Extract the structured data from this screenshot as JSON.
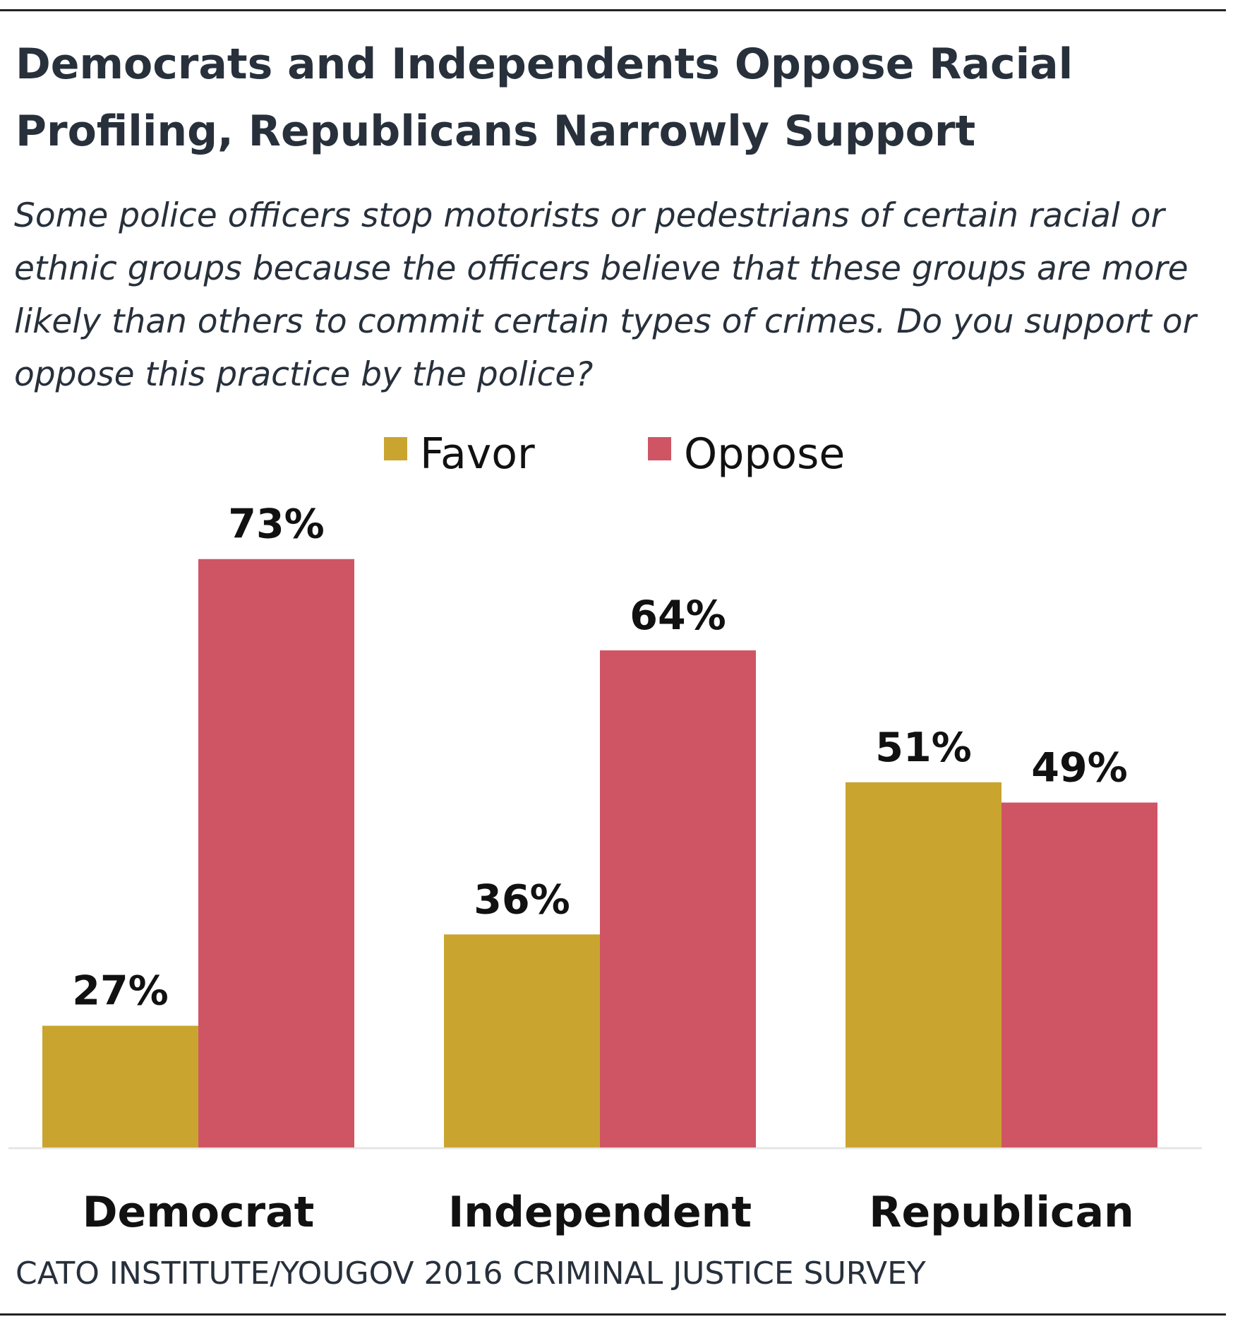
{
  "chart_data": {
    "type": "bar",
    "title": "Democrats and Independents Oppose Racial Profiling, Republicans Narrowly Support",
    "subtitle": "Some police officers stop motorists or pedestrians of certain racial or ethnic groups because the officers believe that these groups are more likely than others to commit certain types of crimes. Do you support or oppose this practice by the police?",
    "source": "CATO INSTITUTE/YOUGOV 2016 CRIMINAL JUSTICE SURVEY",
    "categories": [
      "Democrat",
      "Independent",
      "Republican"
    ],
    "series": [
      {
        "name": "Favor",
        "color": "#c9a530",
        "values": [
          27,
          36,
          51
        ],
        "value_labels": [
          "27%",
          "36%",
          "51%"
        ]
      },
      {
        "name": "Oppose",
        "color": "#cf5565",
        "values": [
          73,
          64,
          49
        ],
        "value_labels": [
          "73%",
          "64%",
          "49%"
        ]
      }
    ],
    "ylim": [
      15,
      75
    ]
  }
}
